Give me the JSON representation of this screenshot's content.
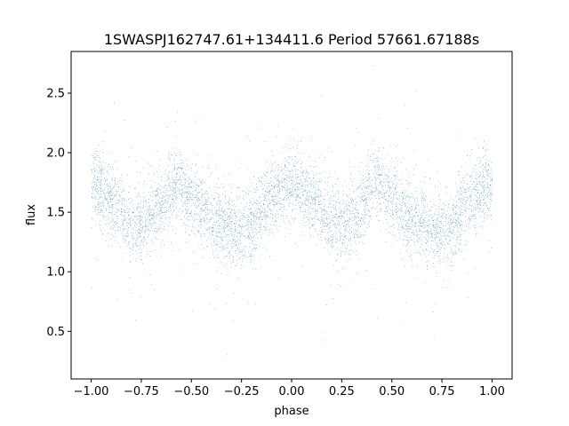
{
  "chart_data": {
    "type": "scatter",
    "title": "1SWASPJ162747.61+134411.6 Period 57661.67188s",
    "xlabel": "phase",
    "ylabel": "flux",
    "xlim": [
      -1.1,
      1.1
    ],
    "ylim": [
      0.1,
      2.85
    ],
    "xticks": [
      -1.0,
      -0.75,
      -0.5,
      -0.25,
      0.0,
      0.25,
      0.5,
      0.75,
      1.0
    ],
    "xtick_labels": [
      "−1.00",
      "−0.75",
      "−0.50",
      "−0.25",
      "0.00",
      "0.25",
      "0.50",
      "0.75",
      "1.00"
    ],
    "yticks": [
      0.5,
      1.0,
      1.5,
      2.0,
      2.5
    ],
    "ytick_labels": [
      "0.5",
      "1.0",
      "1.5",
      "2.0",
      "2.5"
    ],
    "grid": false,
    "marker_color": "#1f77b4",
    "light_curve_profile": {
      "phase": [
        0.0,
        0.1,
        0.2,
        0.25,
        0.3,
        0.43,
        0.5,
        0.6,
        0.72,
        0.8,
        0.9,
        1.0
      ],
      "flux": [
        1.75,
        1.6,
        1.42,
        1.4,
        1.47,
        1.75,
        1.62,
        1.45,
        1.33,
        1.4,
        1.62,
        1.75
      ]
    },
    "scatter_std": 0.15,
    "point_count": 30000
  }
}
